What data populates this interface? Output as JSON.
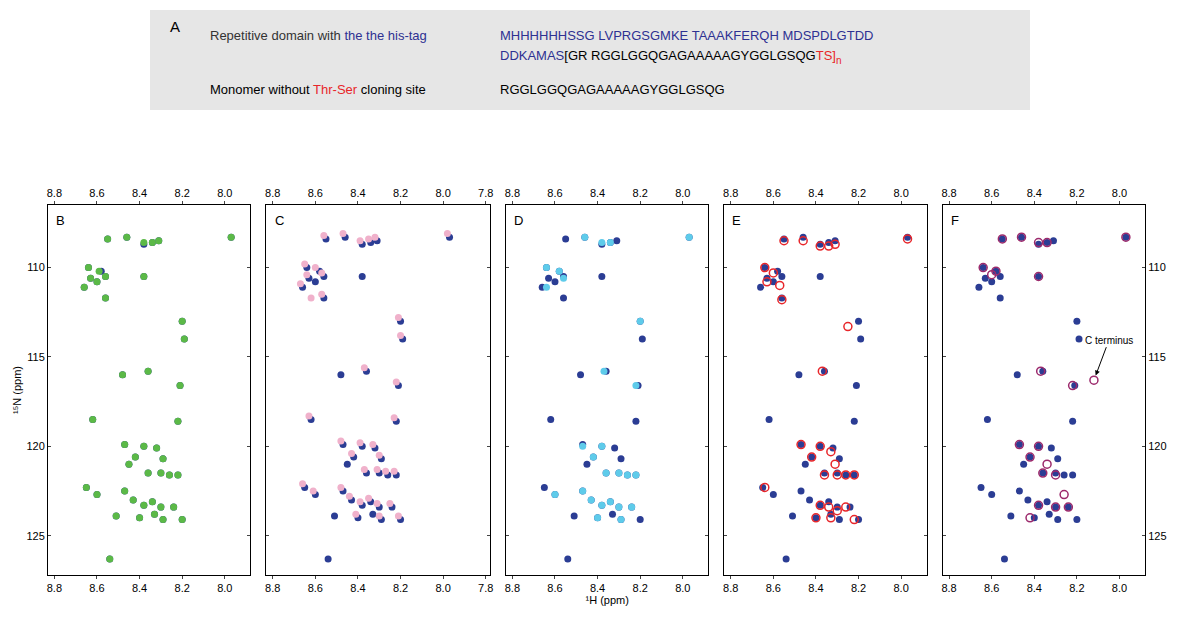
{
  "panel_a": {
    "label": "A",
    "rows": [
      {
        "label": [
          {
            "text": "Repetitive domain with ",
            "color": "#333333"
          },
          {
            "text": "the the his-tag",
            "color": "#2e3192"
          }
        ],
        "sequence": [
          [
            {
              "text": "MHHHHHHSSG LVPRGSGMKE TAAAKFERQH MDSPDLGTDD",
              "color": "#2e3192"
            }
          ],
          [
            {
              "text": "DDKAMAS",
              "color": "#2e3192"
            },
            {
              "text": "[GR ",
              "color": "#000000"
            },
            {
              "text": "RGGLGGQGAGAAAAAGYGGLGSQG",
              "color": "#000000"
            },
            {
              "text": "TS]",
              "color": "#e8262a"
            },
            {
              "text": "n",
              "color": "#e8262a",
              "subscript": true
            }
          ]
        ]
      },
      {
        "label": [
          {
            "text": "Monomer without ",
            "color": "#000000"
          },
          {
            "text": "Thr-Ser",
            "color": "#e8262a"
          },
          {
            "text": " cloning site",
            "color": "#000000"
          }
        ],
        "sequence": [
          [
            {
              "text": "RGGLGGQGAGAAAAAGYGGLGSQG",
              "color": "#000000"
            }
          ]
        ]
      }
    ]
  },
  "chart_data": [
    {
      "type": "scatter",
      "label": "B",
      "y_label": "¹⁵N (ppm)",
      "xlim": [
        8.83,
        7.88
      ],
      "xticks": [
        8.8,
        8.6,
        8.4,
        8.2,
        {
          "value": 8,
          "label": "8.0"
        }
      ],
      "ylim": [
        127.2,
        106.5
      ],
      "yticks": [
        110,
        115,
        120,
        125
      ],
      "series": [
        {
          "color": "#2b3d94",
          "marker": "circle",
          "x": [
            8.55,
            8.46,
            8.38,
            8.34,
            8.31,
            7.97,
            8.64,
            8.63,
            8.58,
            8.56,
            8.66,
            8.56,
            8.38,
            8.6,
            8.2,
            8.19,
            8.48,
            8.36,
            8.21,
            8.62,
            8.22,
            8.47,
            8.38,
            8.32,
            8.29,
            8.42,
            8.36,
            8.3,
            8.26,
            8.22,
            8.45,
            8.65,
            8.6,
            8.47,
            8.43,
            8.38,
            8.34,
            8.3,
            8.24,
            8.2,
            8.51,
            8.4,
            8.33,
            8.29,
            8.54
          ],
          "y": [
            108.4,
            108.3,
            108.7,
            108.6,
            108.5,
            108.3,
            110.0,
            110.6,
            110.2,
            110.5,
            111.1,
            111.7,
            110.5,
            110.8,
            113.0,
            114.0,
            116.0,
            115.8,
            116.6,
            118.5,
            118.6,
            119.9,
            120.0,
            120.1,
            120.7,
            120.6,
            121.5,
            121.5,
            121.6,
            121.6,
            121.0,
            122.3,
            122.7,
            122.5,
            123.0,
            123.3,
            123.1,
            123.4,
            123.4,
            124.1,
            123.9,
            124.0,
            123.8,
            124.1,
            126.3
          ]
        },
        {
          "color": "#5bb947",
          "marker": "circle",
          "x": [
            8.55,
            8.46,
            8.38,
            8.34,
            8.31,
            7.97,
            8.64,
            8.63,
            8.59,
            8.56,
            8.66,
            8.56,
            8.38,
            8.6,
            8.2,
            8.19,
            8.48,
            8.36,
            8.21,
            8.62,
            8.22,
            8.47,
            8.38,
            8.32,
            8.29,
            8.42,
            8.36,
            8.3,
            8.26,
            8.22,
            8.45,
            8.65,
            8.6,
            8.47,
            8.43,
            8.38,
            8.34,
            8.3,
            8.24,
            8.2,
            8.51,
            8.4,
            8.33,
            8.29,
            8.54
          ],
          "y": [
            108.4,
            108.3,
            108.6,
            108.6,
            108.5,
            108.3,
            110.0,
            110.6,
            110.2,
            110.5,
            111.1,
            111.7,
            110.5,
            110.8,
            113.0,
            114.0,
            116.0,
            115.8,
            116.6,
            118.5,
            118.6,
            119.9,
            120.0,
            120.1,
            120.7,
            120.6,
            121.5,
            121.5,
            121.6,
            121.6,
            121.0,
            122.3,
            122.7,
            122.5,
            123.0,
            123.3,
            123.1,
            123.4,
            123.4,
            124.1,
            123.9,
            124.0,
            123.8,
            124.1,
            126.3
          ]
        }
      ]
    },
    {
      "type": "scatter",
      "label": "C",
      "tick_labels": "x",
      "xlim": [
        8.83,
        7.78
      ],
      "xticks": [
        8.8,
        8.6,
        8.4,
        8.2,
        {
          "value": 8,
          "label": "8.0"
        },
        7.8
      ],
      "ylim": [
        127.2,
        106.5
      ],
      "yticks": [
        110,
        115,
        120,
        125
      ],
      "series": [
        {
          "color": "#2b3d94",
          "marker": "circle",
          "x": [
            8.55,
            8.46,
            8.38,
            8.34,
            8.31,
            7.97,
            8.64,
            8.63,
            8.58,
            8.56,
            8.66,
            8.56,
            8.38,
            8.6,
            8.2,
            8.19,
            8.48,
            8.36,
            8.21,
            8.62,
            8.22,
            8.47,
            8.38,
            8.32,
            8.29,
            8.42,
            8.36,
            8.3,
            8.26,
            8.22,
            8.45,
            8.65,
            8.6,
            8.47,
            8.43,
            8.38,
            8.34,
            8.3,
            8.24,
            8.2,
            8.51,
            8.4,
            8.33,
            8.29,
            8.54
          ],
          "y": [
            108.4,
            108.3,
            108.7,
            108.6,
            108.5,
            108.3,
            110.0,
            110.6,
            110.2,
            110.5,
            111.1,
            111.7,
            110.5,
            110.8,
            113.0,
            114.0,
            116.0,
            115.8,
            116.6,
            118.5,
            118.6,
            119.9,
            120.0,
            120.1,
            120.7,
            120.6,
            121.5,
            121.5,
            121.6,
            121.6,
            121.0,
            122.3,
            122.7,
            122.5,
            123.0,
            123.3,
            123.1,
            123.4,
            123.4,
            124.1,
            123.9,
            124.0,
            123.8,
            124.1,
            126.3
          ]
        },
        {
          "color": "#f0b1cb",
          "marker": "circle",
          "x": [
            8.56,
            8.47,
            8.39,
            8.35,
            8.32,
            7.98,
            8.65,
            8.64,
            8.6,
            8.57,
            8.67,
            8.57,
            8.62,
            8.21,
            8.2,
            8.37,
            8.22,
            8.63,
            8.23,
            8.48,
            8.39,
            8.33,
            8.3,
            8.43,
            8.37,
            8.31,
            8.27,
            8.23,
            8.66,
            8.61,
            8.48,
            8.44,
            8.39,
            8.35,
            8.31,
            8.25,
            8.21,
            8.41,
            8.3
          ],
          "y": [
            108.2,
            108.1,
            108.5,
            108.4,
            108.3,
            108.1,
            109.8,
            110.4,
            110.0,
            110.3,
            110.9,
            111.5,
            111.7,
            112.8,
            113.8,
            115.6,
            116.4,
            118.3,
            118.4,
            119.7,
            119.8,
            119.9,
            120.5,
            120.4,
            121.3,
            121.3,
            121.4,
            121.4,
            122.1,
            122.5,
            122.3,
            122.8,
            123.1,
            122.9,
            123.2,
            123.2,
            123.9,
            123.8,
            123.9
          ]
        }
      ]
    },
    {
      "type": "scatter",
      "label": "D",
      "tick_labels": "x",
      "x_label": "¹H (ppm)",
      "xlim": [
        8.83,
        7.88
      ],
      "xticks": [
        8.8,
        8.6,
        8.4,
        8.2,
        {
          "value": 8,
          "label": "8.0"
        }
      ],
      "ylim": [
        127.2,
        106.5
      ],
      "yticks": [
        110,
        115,
        120,
        125
      ],
      "series": [
        {
          "color": "#2b3d94",
          "marker": "circle",
          "x": [
            8.55,
            8.46,
            8.38,
            8.34,
            8.31,
            7.97,
            8.64,
            8.63,
            8.58,
            8.56,
            8.66,
            8.56,
            8.38,
            8.6,
            8.2,
            8.19,
            8.48,
            8.36,
            8.21,
            8.62,
            8.22,
            8.47,
            8.38,
            8.32,
            8.29,
            8.42,
            8.36,
            8.3,
            8.26,
            8.22,
            8.45,
            8.65,
            8.6,
            8.47,
            8.43,
            8.38,
            8.34,
            8.3,
            8.24,
            8.2,
            8.51,
            8.4,
            8.33,
            8.29,
            8.54
          ],
          "y": [
            108.4,
            108.3,
            108.7,
            108.6,
            108.5,
            108.3,
            110.0,
            110.6,
            110.2,
            110.5,
            111.1,
            111.7,
            110.5,
            110.8,
            113.0,
            114.0,
            116.0,
            115.8,
            116.6,
            118.5,
            118.6,
            119.9,
            120.0,
            120.1,
            120.7,
            120.6,
            121.5,
            121.5,
            121.6,
            121.6,
            121.0,
            122.3,
            122.7,
            122.5,
            123.0,
            123.3,
            123.1,
            123.4,
            123.4,
            124.1,
            123.9,
            124.0,
            123.8,
            124.1,
            126.3
          ]
        },
        {
          "color": "#5ecbea",
          "marker": "circle",
          "x": [
            8.46,
            8.38,
            8.34,
            7.97,
            8.64,
            8.58,
            8.64,
            8.56,
            8.2,
            8.37,
            8.22,
            8.47,
            8.38,
            8.42,
            8.36,
            8.3,
            8.26,
            8.22,
            8.6,
            8.47,
            8.43,
            8.38,
            8.34,
            8.3,
            8.24,
            8.4,
            8.29
          ],
          "y": [
            108.3,
            108.6,
            108.6,
            108.3,
            110.0,
            110.2,
            111.1,
            110.6,
            113.0,
            115.8,
            116.6,
            120.0,
            120.0,
            120.6,
            121.5,
            121.5,
            121.6,
            121.6,
            122.7,
            122.5,
            123.0,
            123.3,
            123.1,
            123.4,
            123.4,
            124.0,
            124.1
          ]
        }
      ]
    },
    {
      "type": "scatter",
      "label": "E",
      "tick_labels": "x",
      "xlim": [
        8.83,
        7.88
      ],
      "xticks": [
        8.8,
        8.6,
        8.4,
        8.2,
        {
          "value": 8,
          "label": "8.0"
        }
      ],
      "ylim": [
        127.2,
        106.5
      ],
      "yticks": [
        110,
        115,
        120,
        125
      ],
      "series": [
        {
          "color": "#2b3d94",
          "marker": "circle",
          "x": [
            8.55,
            8.46,
            8.38,
            8.34,
            8.31,
            7.97,
            8.64,
            8.63,
            8.58,
            8.56,
            8.66,
            8.56,
            8.38,
            8.6,
            8.2,
            8.19,
            8.48,
            8.36,
            8.21,
            8.62,
            8.22,
            8.47,
            8.38,
            8.32,
            8.29,
            8.42,
            8.36,
            8.3,
            8.26,
            8.22,
            8.45,
            8.65,
            8.6,
            8.47,
            8.43,
            8.38,
            8.34,
            8.3,
            8.24,
            8.2,
            8.51,
            8.4,
            8.33,
            8.29,
            8.54
          ],
          "y": [
            108.4,
            108.3,
            108.7,
            108.6,
            108.5,
            108.3,
            110.0,
            110.6,
            110.2,
            110.5,
            111.1,
            111.7,
            110.5,
            110.8,
            113.0,
            114.0,
            116.0,
            115.8,
            116.6,
            118.5,
            118.6,
            119.9,
            120.0,
            120.1,
            120.7,
            120.6,
            121.5,
            121.5,
            121.6,
            121.6,
            121.0,
            122.3,
            122.7,
            122.5,
            123.0,
            123.3,
            123.1,
            123.4,
            123.4,
            124.1,
            123.9,
            124.0,
            123.8,
            124.1,
            126.3
          ]
        },
        {
          "color": "#e8262a",
          "marker": "circle-open",
          "x": [
            8.55,
            8.46,
            8.38,
            8.34,
            8.31,
            7.97,
            8.64,
            8.6,
            8.63,
            8.57,
            8.56,
            8.25,
            8.37,
            8.47,
            8.38,
            8.33,
            8.42,
            8.31,
            8.36,
            8.3,
            8.26,
            8.22,
            8.64,
            8.38,
            8.34,
            8.3,
            8.26,
            8.4,
            8.33,
            8.22
          ],
          "y": [
            108.5,
            108.5,
            108.8,
            108.8,
            108.7,
            108.4,
            110.0,
            110.3,
            110.8,
            111.0,
            111.8,
            113.3,
            115.8,
            119.9,
            120.0,
            120.3,
            120.6,
            121.0,
            121.6,
            121.6,
            121.6,
            121.6,
            122.3,
            123.3,
            123.4,
            123.6,
            123.4,
            124.0,
            124.0,
            124.1
          ]
        }
      ]
    },
    {
      "type": "scatter",
      "label": "F",
      "xlim": [
        8.83,
        7.88
      ],
      "xticks": [
        8.8,
        8.6,
        8.4,
        8.2,
        {
          "value": 8,
          "label": "8.0"
        }
      ],
      "ylim": [
        127.2,
        106.5
      ],
      "yticks": [
        110,
        115,
        120,
        125
      ],
      "annotations": [
        {
          "text": "C terminus",
          "x": 8.12,
          "y": 116.3
        }
      ],
      "series": [
        {
          "color": "#2b3d94",
          "marker": "circle",
          "x": [
            8.55,
            8.46,
            8.38,
            8.34,
            8.31,
            7.97,
            8.64,
            8.63,
            8.58,
            8.56,
            8.66,
            8.56,
            8.38,
            8.6,
            8.2,
            8.19,
            8.48,
            8.36,
            8.21,
            8.62,
            8.22,
            8.47,
            8.38,
            8.32,
            8.29,
            8.42,
            8.36,
            8.3,
            8.26,
            8.22,
            8.45,
            8.65,
            8.6,
            8.47,
            8.43,
            8.38,
            8.34,
            8.3,
            8.24,
            8.2,
            8.51,
            8.4,
            8.33,
            8.29,
            8.54
          ],
          "y": [
            108.4,
            108.3,
            108.7,
            108.6,
            108.5,
            108.3,
            110.0,
            110.6,
            110.2,
            110.5,
            111.1,
            111.7,
            110.5,
            110.8,
            113.0,
            114.0,
            116.0,
            115.8,
            116.6,
            118.5,
            118.6,
            119.9,
            120.0,
            120.1,
            120.7,
            120.6,
            121.5,
            121.5,
            121.6,
            121.6,
            121.0,
            122.3,
            122.7,
            122.5,
            123.0,
            123.3,
            123.1,
            123.4,
            123.4,
            124.1,
            123.9,
            124.0,
            123.8,
            124.1,
            126.3
          ]
        },
        {
          "color": "#9c2a6c",
          "marker": "circle-open",
          "x": [
            8.55,
            8.46,
            8.38,
            8.34,
            7.97,
            8.64,
            8.58,
            8.6,
            8.38,
            8.37,
            8.22,
            8.47,
            8.38,
            8.34,
            8.42,
            8.36,
            8.3,
            8.26,
            8.38,
            8.3,
            8.24,
            8.42,
            8.12
          ],
          "y": [
            108.4,
            108.3,
            108.6,
            108.6,
            108.3,
            110.0,
            110.2,
            110.4,
            110.5,
            115.8,
            116.6,
            119.9,
            120.0,
            121.0,
            120.6,
            121.5,
            121.6,
            122.7,
            123.3,
            123.4,
            123.4,
            124.0,
            116.3
          ]
        }
      ]
    }
  ]
}
